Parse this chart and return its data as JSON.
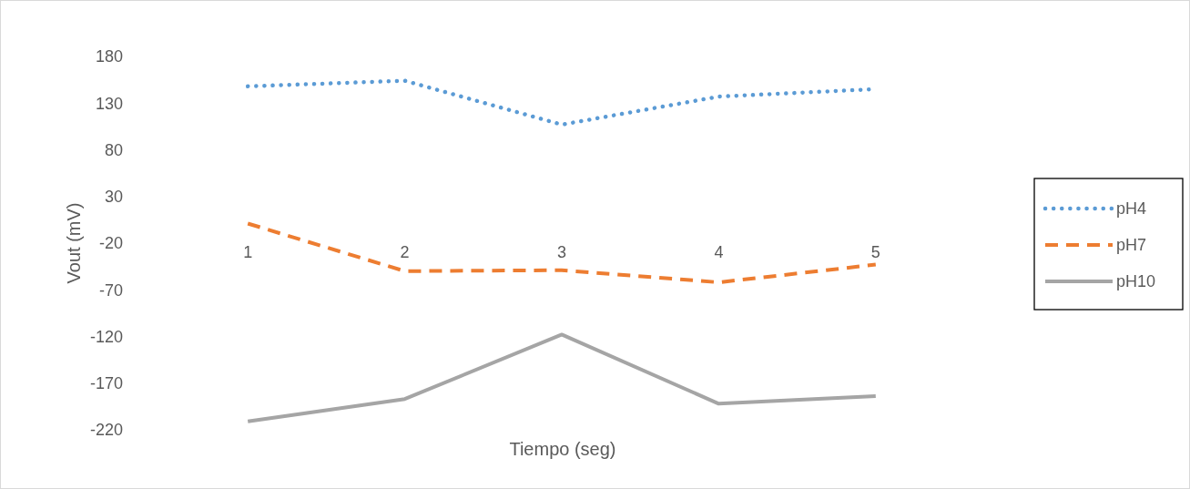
{
  "chart_data": {
    "type": "line",
    "xlabel": "Tiempo (seg)",
    "ylabel": "Vout (mV)",
    "categories": [
      "1",
      "2",
      "3",
      "4",
      "5"
    ],
    "ylim": [
      -220,
      180
    ],
    "yticks": [
      -220,
      -170,
      -120,
      -70,
      -20,
      30,
      80,
      130,
      180
    ],
    "grid": false,
    "legend": "right",
    "series": [
      {
        "name": "pH4",
        "color": "#5b9bd5",
        "line_style": "dotted",
        "values": [
          148,
          154,
          107,
          137,
          145
        ]
      },
      {
        "name": "pH7",
        "color": "#ed7d31",
        "line_style": "dashed",
        "values": [
          1,
          -50,
          -49,
          -62,
          -43
        ]
      },
      {
        "name": "pH10",
        "color": "#a5a5a5",
        "line_style": "solid",
        "values": [
          -211,
          -187,
          -118,
          -192,
          -184
        ]
      }
    ]
  }
}
